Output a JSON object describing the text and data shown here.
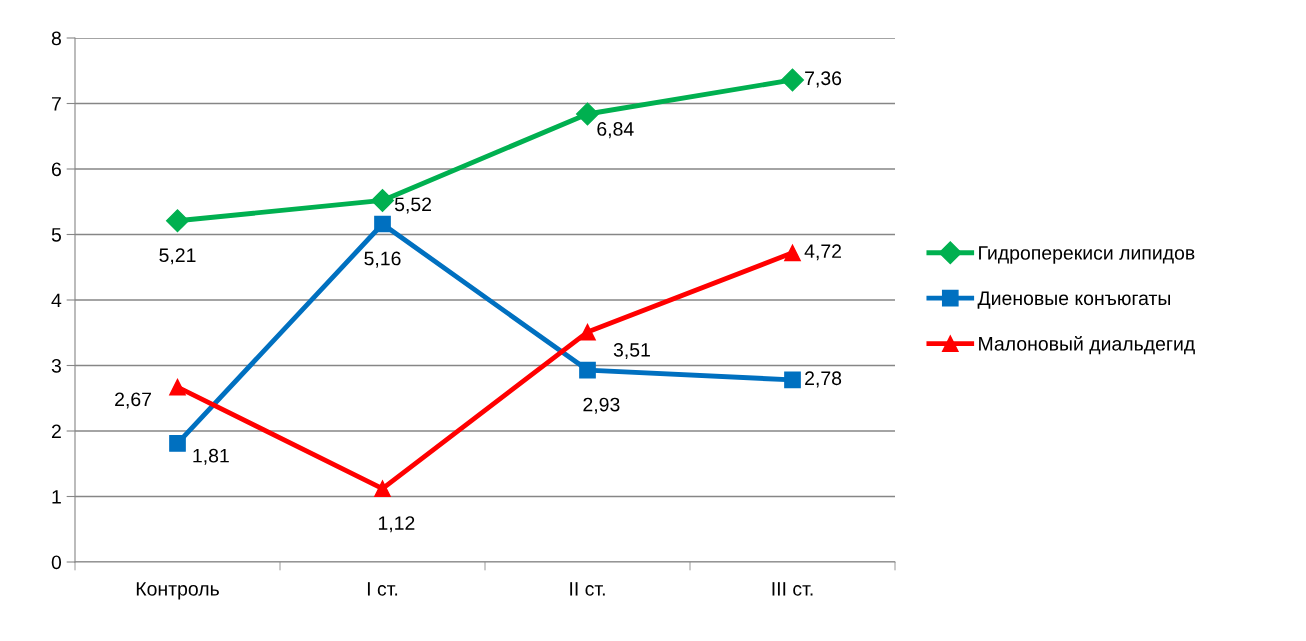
{
  "chart_data": {
    "type": "line",
    "categories": [
      "Контроль",
      "I ст.",
      "II ст.",
      "III ст."
    ],
    "series": [
      {
        "name": "Гидроперекиси липидов",
        "color": "#00b050",
        "marker": "diamond",
        "values": [
          5.21,
          5.52,
          6.84,
          7.36
        ],
        "value_labels": [
          "5,21",
          "5,52",
          "6,84",
          "7,36"
        ]
      },
      {
        "name": "Диеновые конъюгаты",
        "color": "#0070c0",
        "marker": "square",
        "values": [
          1.81,
          5.16,
          2.93,
          2.78
        ],
        "value_labels": [
          "1,81",
          "5,16",
          "2,93",
          "2,78"
        ]
      },
      {
        "name": "Малоновый диальдегид",
        "color": "#ff0000",
        "marker": "triangle",
        "values": [
          2.67,
          1.12,
          3.51,
          4.72
        ],
        "value_labels": [
          "2,67",
          "1,12",
          "3,51",
          "4,72"
        ]
      }
    ],
    "ylim": [
      0,
      8
    ],
    "yticks": [
      0,
      1,
      2,
      3,
      4,
      5,
      6,
      7,
      8
    ],
    "grid": "y",
    "legend": "right",
    "line_style": "solid"
  }
}
